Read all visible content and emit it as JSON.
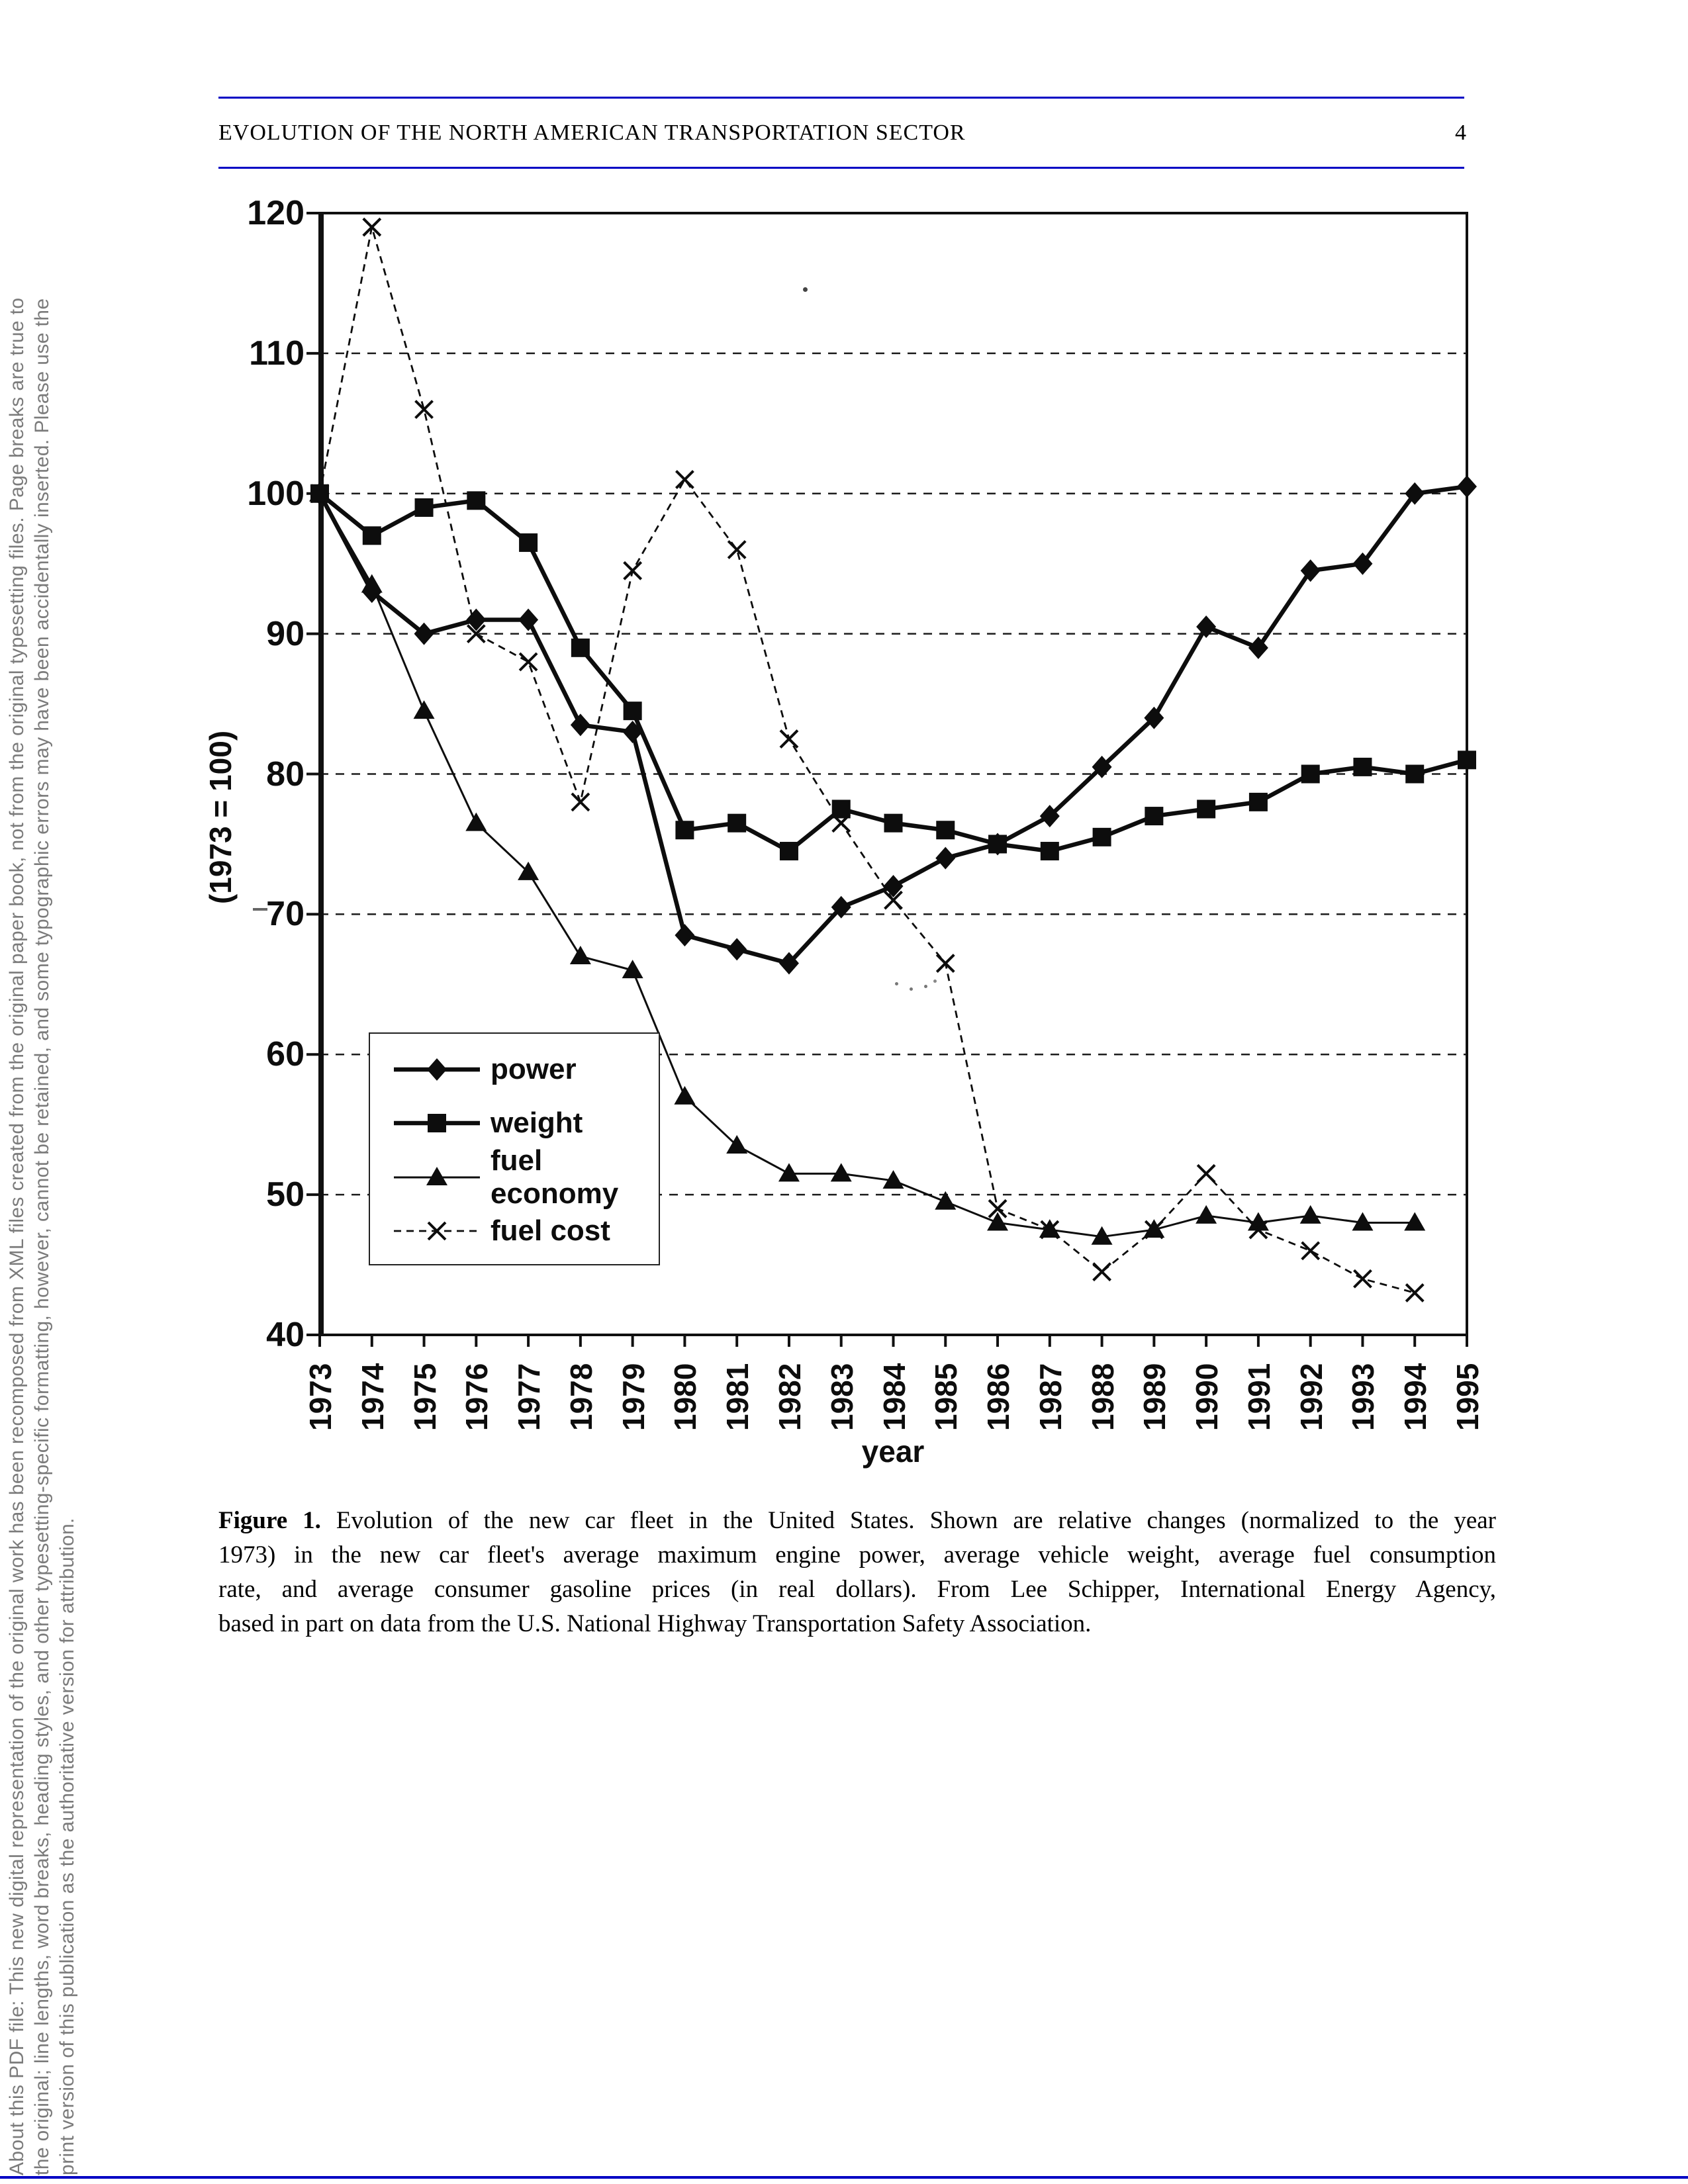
{
  "page": {
    "header_title": "EVOLUTION OF THE NORTH AMERICAN TRANSPORTATION SECTOR",
    "page_number": "4"
  },
  "sidebar": {
    "lines": [
      "About this PDF file: This new digital representation of the original work has been recomposed from XML files created from the original paper book, not from the original typesetting files. Page breaks are true to",
      "the original; line lengths, word breaks, heading styles, and other typesetting-specific formatting, however, cannot be retained, and some typographic errors may have been accidentally inserted. Please use the",
      "print version of this publication as the authoritative version for attribution."
    ]
  },
  "chart_data": {
    "type": "line",
    "title": "",
    "xlabel": "year",
    "ylabel": "(1973 = 100)",
    "ylim": [
      40,
      120
    ],
    "yticks": [
      120,
      110,
      100,
      90,
      80,
      70,
      60,
      50,
      40
    ],
    "grid": "horizontal-dashed",
    "legend_position": "lower-left-box",
    "x": [
      1973,
      1974,
      1975,
      1976,
      1977,
      1978,
      1979,
      1980,
      1981,
      1982,
      1983,
      1984,
      1985,
      1986,
      1987,
      1988,
      1989,
      1990,
      1991,
      1992,
      1993,
      1994,
      1995
    ],
    "series": [
      {
        "name": "power",
        "marker": "diamond",
        "line": "thick",
        "values": [
          100,
          93,
          90,
          91,
          91,
          83.5,
          83,
          68.5,
          67.5,
          66.5,
          70.5,
          72,
          74,
          75,
          77,
          80.5,
          84,
          90.5,
          89,
          94.5,
          95,
          100,
          100.5
        ]
      },
      {
        "name": "weight",
        "marker": "square",
        "line": "thick",
        "values": [
          100,
          97,
          99,
          99.5,
          96.5,
          89,
          84.5,
          76,
          76.5,
          74.5,
          77.5,
          76.5,
          76,
          75,
          74.5,
          75.5,
          77,
          77.5,
          78,
          80,
          80.5,
          80,
          81
        ]
      },
      {
        "name": "fuel economy",
        "marker": "triangle",
        "line": "thin",
        "values": [
          100,
          93.5,
          84.5,
          76.5,
          73,
          67,
          66,
          57,
          53.5,
          51.5,
          51.5,
          51,
          49.5,
          48,
          47.5,
          47,
          47.5,
          48.5,
          48,
          48.5,
          48,
          48,
          null
        ]
      },
      {
        "name": "fuel cost",
        "marker": "x",
        "line": "thin",
        "values": [
          100,
          119,
          106,
          90,
          88,
          78,
          94.5,
          101,
          96,
          82.5,
          76.5,
          71,
          66.5,
          49,
          47.5,
          44.5,
          47.5,
          51.5,
          47.5,
          46,
          44,
          43,
          null
        ]
      }
    ]
  },
  "caption": {
    "label": "Figure 1.",
    "lines": [
      "Evolution of the new car fleet in the United States. Shown are relative changes (normalized to the year",
      "1973) in the new car fleet's average maximum engine power, average vehicle weight, average fuel consumption",
      "rate, and average consumer gasoline prices (in real dollars). From Lee Schipper, International Energy Agency,",
      "based in part on data from the U.S. National Highway Transportation Safety Association."
    ]
  }
}
